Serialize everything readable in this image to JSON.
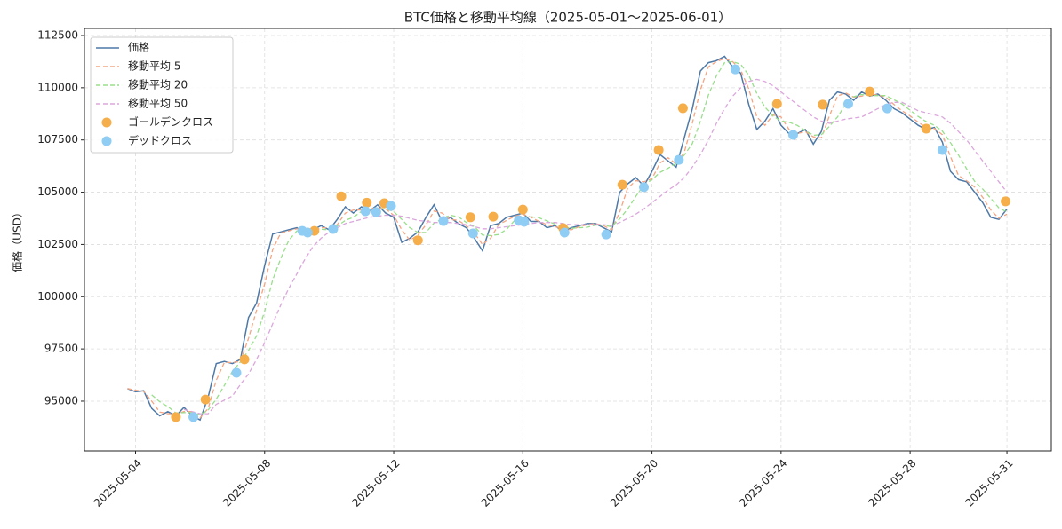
{
  "chart_data": {
    "type": "line",
    "title": "BTC価格と移動平均線（2025-05-01～2025-06-01）",
    "ylabel": "価格（USD）",
    "grid": true,
    "legend": "upper left",
    "xlim": [
      "2025-05-02 10:00",
      "2025-06-01 09:00"
    ],
    "xticks": [
      "2025-05-04",
      "2025-05-08",
      "2025-05-12",
      "2025-05-16",
      "2025-05-20",
      "2025-05-24",
      "2025-05-28",
      "2025-05-31"
    ],
    "ylim": [
      92620,
      112840
    ],
    "yticks": [
      95000,
      97500,
      100000,
      102500,
      105000,
      107500,
      110000,
      112500
    ],
    "x": [
      "2025-05-03 18:00",
      "2025-05-04 00:00",
      "2025-05-04 06:00",
      "2025-05-04 12:00",
      "2025-05-04 18:00",
      "2025-05-05 00:00",
      "2025-05-05 06:00",
      "2025-05-05 12:00",
      "2025-05-05 18:00",
      "2025-05-06 00:00",
      "2025-05-06 06:00",
      "2025-05-06 12:00",
      "2025-05-06 18:00",
      "2025-05-07 00:00",
      "2025-05-07 06:00",
      "2025-05-07 12:00",
      "2025-05-07 18:00",
      "2025-05-08 00:00",
      "2025-05-08 06:00",
      "2025-05-08 12:00",
      "2025-05-08 18:00",
      "2025-05-09 00:00",
      "2025-05-09 06:00",
      "2025-05-09 12:00",
      "2025-05-09 18:00",
      "2025-05-10 00:00",
      "2025-05-10 06:00",
      "2025-05-10 12:00",
      "2025-05-10 18:00",
      "2025-05-11 00:00",
      "2025-05-11 06:00",
      "2025-05-11 12:00",
      "2025-05-11 18:00",
      "2025-05-12 00:00",
      "2025-05-12 06:00",
      "2025-05-12 12:00",
      "2025-05-12 18:00",
      "2025-05-13 00:00",
      "2025-05-13 06:00",
      "2025-05-13 12:00",
      "2025-05-13 18:00",
      "2025-05-14 00:00",
      "2025-05-14 06:00",
      "2025-05-14 12:00",
      "2025-05-14 18:00",
      "2025-05-15 00:00",
      "2025-05-15 06:00",
      "2025-05-15 12:00",
      "2025-05-15 18:00",
      "2025-05-16 00:00",
      "2025-05-16 06:00",
      "2025-05-16 12:00",
      "2025-05-16 18:00",
      "2025-05-17 00:00",
      "2025-05-17 06:00",
      "2025-05-17 12:00",
      "2025-05-17 18:00",
      "2025-05-18 00:00",
      "2025-05-18 06:00",
      "2025-05-18 12:00",
      "2025-05-18 18:00",
      "2025-05-19 00:00",
      "2025-05-19 06:00",
      "2025-05-19 12:00",
      "2025-05-19 18:00",
      "2025-05-20 00:00",
      "2025-05-20 06:00",
      "2025-05-20 12:00",
      "2025-05-20 18:00",
      "2025-05-21 00:00",
      "2025-05-21 06:00",
      "2025-05-21 12:00",
      "2025-05-21 18:00",
      "2025-05-22 00:00",
      "2025-05-22 06:00",
      "2025-05-22 12:00",
      "2025-05-22 18:00",
      "2025-05-23 00:00",
      "2025-05-23 06:00",
      "2025-05-23 12:00",
      "2025-05-23 18:00",
      "2025-05-24 00:00",
      "2025-05-24 06:00",
      "2025-05-24 12:00",
      "2025-05-24 18:00",
      "2025-05-25 00:00",
      "2025-05-25 06:00",
      "2025-05-25 12:00",
      "2025-05-25 18:00",
      "2025-05-26 00:00",
      "2025-05-26 06:00",
      "2025-05-26 12:00",
      "2025-05-26 18:00",
      "2025-05-27 00:00",
      "2025-05-27 06:00",
      "2025-05-27 12:00",
      "2025-05-27 18:00",
      "2025-05-28 00:00",
      "2025-05-28 06:00",
      "2025-05-28 12:00",
      "2025-05-28 18:00",
      "2025-05-29 00:00",
      "2025-05-29 06:00",
      "2025-05-29 12:00",
      "2025-05-29 18:00",
      "2025-05-30 00:00",
      "2025-05-30 06:00",
      "2025-05-30 12:00",
      "2025-05-30 18:00",
      "2025-05-31 00:00"
    ],
    "series": [
      {
        "name": "価格",
        "color": "#4e79a7",
        "linestyle": "solid",
        "values": [
          95600,
          95450,
          95500,
          94650,
          94300,
          94500,
          94300,
          94700,
          94300,
          94100,
          95200,
          96800,
          96900,
          96800,
          97000,
          99000,
          99700,
          101500,
          103000,
          103100,
          103200,
          103300,
          103000,
          103200,
          103400,
          103200,
          103700,
          104300,
          104000,
          104300,
          104100,
          104400,
          104000,
          103800,
          102600,
          102800,
          103100,
          103800,
          104400,
          103600,
          103800,
          103500,
          103300,
          102800,
          102200,
          103400,
          103500,
          103800,
          103900,
          104000,
          103600,
          103600,
          103300,
          103400,
          103100,
          103300,
          103400,
          103500,
          103500,
          103300,
          103100,
          105000,
          105400,
          105700,
          105300,
          106000,
          106800,
          106500,
          106200,
          107600,
          109000,
          110800,
          111200,
          111300,
          111500,
          111000,
          110700,
          109200,
          108000,
          108400,
          109000,
          108200,
          107800,
          107800,
          108000,
          107300,
          107900,
          109400,
          109800,
          109700,
          109400,
          109800,
          109600,
          109700,
          109400,
          109000,
          108800,
          108500,
          108200,
          108000,
          108100,
          107400,
          106000,
          105600,
          105500,
          105000,
          104500,
          103800,
          103700,
          104200
        ]
      },
      {
        "name": "移動平均 5",
        "color": "#f4a582",
        "linestyle": "dashed",
        "values": [
          95600,
          95520,
          95480,
          95000,
          94480,
          94400,
          94400,
          94500,
          94500,
          94200,
          94650,
          96000,
          96850,
          96850,
          96900,
          98000,
          99350,
          100600,
          102250,
          103050,
          103150,
          103250,
          103150,
          103100,
          103300,
          103300,
          103450,
          104000,
          104150,
          104150,
          104200,
          104250,
          104200,
          103900,
          103200,
          102700,
          102950,
          103450,
          104100,
          104000,
          103700,
          103650,
          103400,
          103050,
          102500,
          102800,
          103450,
          103650,
          103850,
          103950,
          103800,
          103600,
          103450,
          103350,
          103250,
          103200,
          103350,
          103450,
          103500,
          103400,
          103200,
          104050,
          105200,
          105550,
          105500,
          105650,
          106400,
          106650,
          106350,
          106900,
          108300,
          109900,
          111000,
          111250,
          111400,
          111250,
          110850,
          109950,
          108600,
          108200,
          108700,
          108600,
          108000,
          107800,
          107900,
          107650,
          107600,
          108650,
          109600,
          109750,
          109550,
          109600,
          109700,
          109650,
          109550,
          109200,
          108900,
          108650,
          108350,
          108100,
          108050,
          107750,
          106700,
          105800,
          105550,
          105250,
          104750,
          104150,
          103750,
          103950
        ]
      },
      {
        "name": "移動平均 20",
        "color": "#98df8a",
        "linestyle": "dashed",
        "values": [
          null,
          null,
          null,
          95300,
          94975,
          94738,
          94438,
          94450,
          94450,
          94350,
          94575,
          95100,
          95750,
          96425,
          96875,
          97425,
          98125,
          99300,
          100800,
          101825,
          102700,
          103150,
          103150,
          103175,
          103225,
          103200,
          103375,
          103650,
          103800,
          104075,
          104175,
          104200,
          104200,
          104075,
          103700,
          103300,
          103075,
          103075,
          103525,
          103725,
          103900,
          103825,
          103550,
          103350,
          102950,
          102925,
          102975,
          103225,
          103650,
          103800,
          103825,
          103775,
          103625,
          103475,
          103350,
          103275,
          103300,
          103325,
          103425,
          103425,
          103350,
          103725,
          104200,
          104800,
          105350,
          105600,
          105950,
          106150,
          106375,
          106775,
          107325,
          108400,
          109650,
          110575,
          111200,
          111250,
          111125,
          110600,
          109725,
          109075,
          108650,
          108400,
          108350,
          108200,
          107950,
          107725,
          107750,
          108150,
          108600,
          109200,
          109575,
          109675,
          109625,
          109625,
          109625,
          109425,
          109225,
          108925,
          108625,
          108375,
          108200,
          107925,
          107375,
          106775,
          106125,
          105525,
          105150,
          104700,
          104250,
          104050
        ]
      },
      {
        "name": "移動平均 50",
        "color": "#dba6dc",
        "linestyle": "dashed",
        "values": [
          null,
          null,
          null,
          null,
          null,
          null,
          null,
          94600,
          94500,
          94400,
          94400,
          94850,
          95050,
          95250,
          95800,
          96300,
          97000,
          97800,
          98700,
          99600,
          100400,
          101100,
          101800,
          102400,
          102800,
          103100,
          103300,
          103500,
          103600,
          103700,
          103800,
          103850,
          103900,
          103900,
          103850,
          103750,
          103650,
          103600,
          103550,
          103550,
          103550,
          103500,
          103450,
          103350,
          103250,
          103250,
          103300,
          103350,
          103400,
          103450,
          103500,
          103550,
          103550,
          103550,
          103500,
          103450,
          103450,
          103450,
          103450,
          103450,
          103400,
          103550,
          103750,
          103950,
          104200,
          104500,
          104800,
          105100,
          105350,
          105700,
          106200,
          106800,
          107500,
          108300,
          109000,
          109600,
          110000,
          110300,
          110400,
          110300,
          110100,
          109800,
          109500,
          109200,
          108900,
          108600,
          108400,
          108300,
          108400,
          108500,
          108550,
          108600,
          108800,
          109000,
          109200,
          109300,
          109300,
          109100,
          108900,
          108800,
          108700,
          108600,
          108300,
          107900,
          107500,
          107000,
          106500,
          106000,
          105500,
          105000
        ]
      },
      {
        "name": "ゴールデンクロス",
        "color": "#f5ae4a",
        "type": "scatter",
        "x": [
          "2025-05-05 06:00",
          "2025-05-06 04:00",
          "2025-05-07 09:00",
          "2025-05-09 13:00",
          "2025-05-10 09:00",
          "2025-05-11 04:00",
          "2025-05-11 17:00",
          "2025-05-12 18:00",
          "2025-05-14 09:00",
          "2025-05-15 02:00",
          "2025-05-16 00:00",
          "2025-05-17 06:00",
          "2025-05-19 02:00",
          "2025-05-20 05:00",
          "2025-05-20 23:00",
          "2025-05-23 21:00",
          "2025-05-25 07:00",
          "2025-05-26 18:00",
          "2025-05-28 12:00",
          "2025-05-30 23:00"
        ],
        "values": [
          94240,
          95080,
          97000,
          103150,
          104800,
          104500,
          104470,
          102700,
          103800,
          103830,
          104170,
          103280,
          105360,
          107020,
          109020,
          109230,
          109190,
          109820,
          108040,
          104560
        ]
      },
      {
        "name": "デッドクロス",
        "color": "#8fcdf4",
        "type": "scatter",
        "x": [
          "2025-05-05 19:00",
          "2025-05-07 03:00",
          "2025-05-09 04:00",
          "2025-05-09 08:00",
          "2025-05-10 03:00",
          "2025-05-11 03:00",
          "2025-05-11 11:00",
          "2025-05-11 22:00",
          "2025-05-13 13:00",
          "2025-05-14 11:00",
          "2025-05-15 21:00",
          "2025-05-16 01:00",
          "2025-05-17 07:00",
          "2025-05-18 14:00",
          "2025-05-19 18:00",
          "2025-05-20 20:00",
          "2025-05-22 14:00",
          "2025-05-24 09:00",
          "2025-05-26 02:00",
          "2025-05-27 07:00",
          "2025-05-29 00:00"
        ],
        "values": [
          94240,
          96360,
          103150,
          103070,
          103240,
          104090,
          104050,
          104340,
          103620,
          103030,
          103660,
          103580,
          103070,
          102980,
          105240,
          106550,
          110880,
          107740,
          109230,
          109010,
          107020
        ]
      }
    ]
  }
}
